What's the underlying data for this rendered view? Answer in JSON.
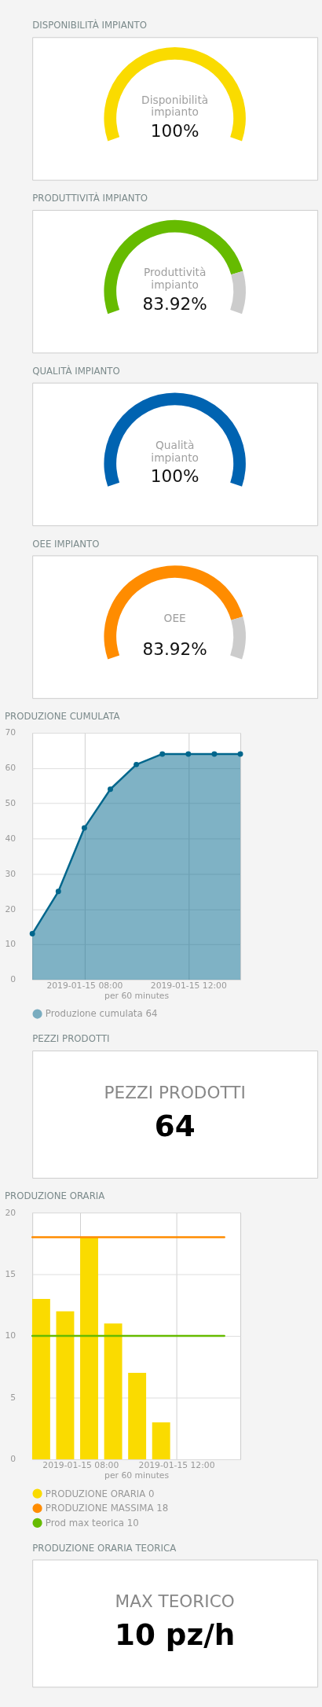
{
  "chart_data": [
    {
      "type": "pie",
      "title": "DISPONIBILITÀ IMPIANTO",
      "categories": [
        null,
        null
      ],
      "values": [
        100,
        0
      ],
      "colors": [
        "#fadb00",
        "#cccccc"
      ],
      "annotations": [
        "Disponibilità impianto",
        "100%"
      ]
    },
    {
      "type": "donut",
      "title": "PRODUTTIVITÀ IMPIANTO",
      "categories": [
        null,
        null
      ],
      "values": [
        83.92,
        16.08
      ],
      "colors": [
        "#66bb00",
        "#cccccc"
      ],
      "annotations": [
        "Produttività impianto",
        "83.92%"
      ]
    },
    {
      "type": "pie",
      "title": "QUALITÀ IMPIANTO",
      "categories": [
        null,
        null
      ],
      "values": [
        100,
        0
      ],
      "colors": [
        "#0063b1",
        "#cccccc"
      ],
      "annotations": [
        "Qualità impianto",
        "100%"
      ]
    },
    {
      "type": "donut",
      "title": "OEE IMPIANTO",
      "categories": [
        null,
        null
      ],
      "values": [
        83.92,
        16.08
      ],
      "colors": [
        "#ff8c00",
        "#cccccc"
      ],
      "annotations": [
        "OEE",
        "83.92%"
      ]
    },
    {
      "type": "area",
      "title": "PRODUZIONE CUMULATA",
      "xlabel": "per 60 minutes",
      "x": [
        "2019-01-15T06:00",
        "2019-01-15T07:00",
        "2019-01-15T08:00",
        "2019-01-15T09:00",
        "2019-01-15T10:00",
        "2019-01-15T11:00",
        "2019-01-15T12:00",
        "2019-01-15T13:00",
        "2019-01-15T14:00"
      ],
      "xlim": [
        "2019-01-15T06:00",
        "2019-01-15T14:00"
      ],
      "xticks": [
        {
          "value": "2019-01-15T08:00",
          "label": "2019-01-15 08:00"
        },
        {
          "value": "2019-01-15T12:00",
          "label": "2019-01-15 12:00"
        }
      ],
      "ylim": [
        0,
        70
      ],
      "yticks": [
        0,
        10,
        20,
        30,
        40,
        50,
        60,
        70
      ],
      "grid": true,
      "legend": "bottom",
      "marker": "circle",
      "line_style": "solid",
      "series": [
        {
          "name": "Produzione cumulata 64",
          "color": "#00668c",
          "values": [
            13,
            25,
            43,
            54,
            61,
            64,
            64,
            64,
            64
          ]
        }
      ]
    },
    {
      "type": "other",
      "title": "PEZZI PRODOTTI",
      "annotations": [
        "PEZZI PRODOTTI",
        "64"
      ]
    },
    {
      "type": "bar",
      "title": "PRODUZIONE ORARIA",
      "xlabel": "per 60 minutes",
      "x": [
        "2019-01-15T06:00",
        "2019-01-15T07:00",
        "2019-01-15T08:00",
        "2019-01-15T09:00",
        "2019-01-15T10:00",
        "2019-01-15T11:00",
        "2019-01-15T12:00",
        "2019-01-15T13:00",
        "2019-01-15T14:00"
      ],
      "xlim": [
        "2019-01-15T06:00",
        "2019-01-15T14:40"
      ],
      "xticks": [
        {
          "value": "2019-01-15T08:00",
          "label": "2019-01-15 08:00"
        },
        {
          "value": "2019-01-15T12:00",
          "label": "2019-01-15 12:00"
        }
      ],
      "ylim": [
        0,
        20
      ],
      "yticks": [
        0,
        5,
        10,
        15,
        20
      ],
      "grid": true,
      "legend": "bottom",
      "series": [
        {
          "name": "PRODUZIONE ORARIA 0",
          "color": "#fadb00",
          "x": [
            "2019-01-15T06:22",
            "2019-01-15T07:22",
            "2019-01-15T08:22",
            "2019-01-15T09:22",
            "2019-01-15T10:22",
            "2019-01-15T11:22",
            "2019-01-15T12:22",
            "2019-01-15T13:22",
            "2019-01-15T14:22"
          ],
          "values": [
            13,
            12,
            18,
            11,
            7,
            3,
            0,
            0,
            0
          ]
        },
        {
          "type": "line",
          "name": "PRODUZIONE MASSIMA 18",
          "color": "#ff8c00",
          "values": [
            18,
            18,
            18,
            18,
            18,
            18,
            18,
            18,
            18
          ]
        },
        {
          "type": "line",
          "name": "Prod max teorica 10",
          "color": "#66bb00",
          "values": [
            10,
            10,
            10,
            10,
            10,
            10,
            10,
            10,
            10
          ]
        }
      ]
    },
    {
      "type": "other",
      "title": "PRODUZIONE ORARIA TEORICA",
      "annotations": [
        "MAX TEORICO",
        "10 pz/h"
      ]
    }
  ]
}
